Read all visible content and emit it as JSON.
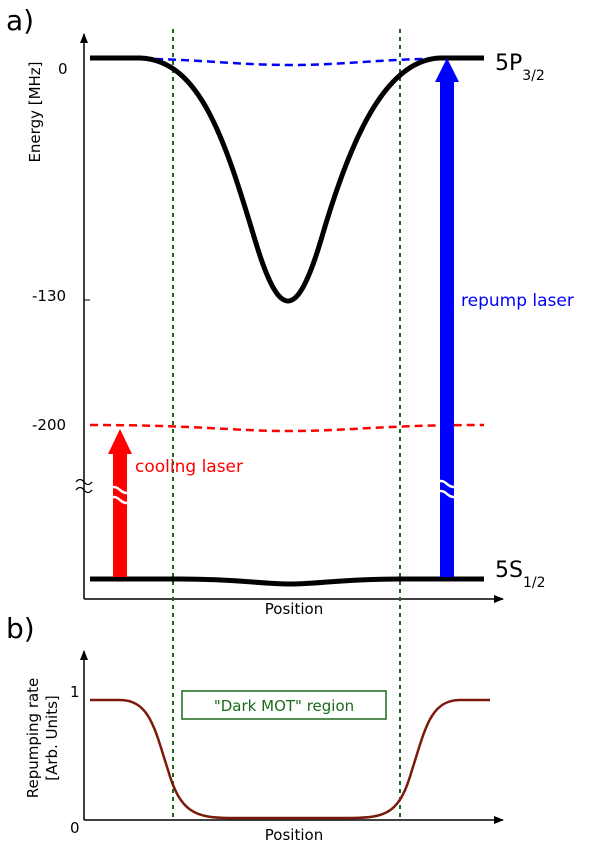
{
  "panel_a": {
    "label": "a)",
    "ylabel": "Energy [MHz]",
    "xlabel": "Position",
    "ticks": [
      "0",
      "-130",
      "-200"
    ],
    "state_upper": {
      "main": "5P",
      "sub": "3/2"
    },
    "state_lower": {
      "main": "5S",
      "sub": "1/2"
    },
    "repump_label": "repump laser",
    "cooling_label": "cooling laser",
    "colors": {
      "repump": "#0000ff",
      "cooling": "#ff0000",
      "level": "#000000",
      "region_line": "#1a6a1a"
    }
  },
  "panel_b": {
    "label": "b)",
    "ylabel_line1": "Repumping rate",
    "ylabel_line2": "[Arb. Units]",
    "xlabel": "Position",
    "ticks": [
      "1",
      "0"
    ],
    "region_label": "\"Dark MOT\" region",
    "colors": {
      "curve": "#7a1a0a",
      "region": "#1a6a1a"
    }
  }
}
